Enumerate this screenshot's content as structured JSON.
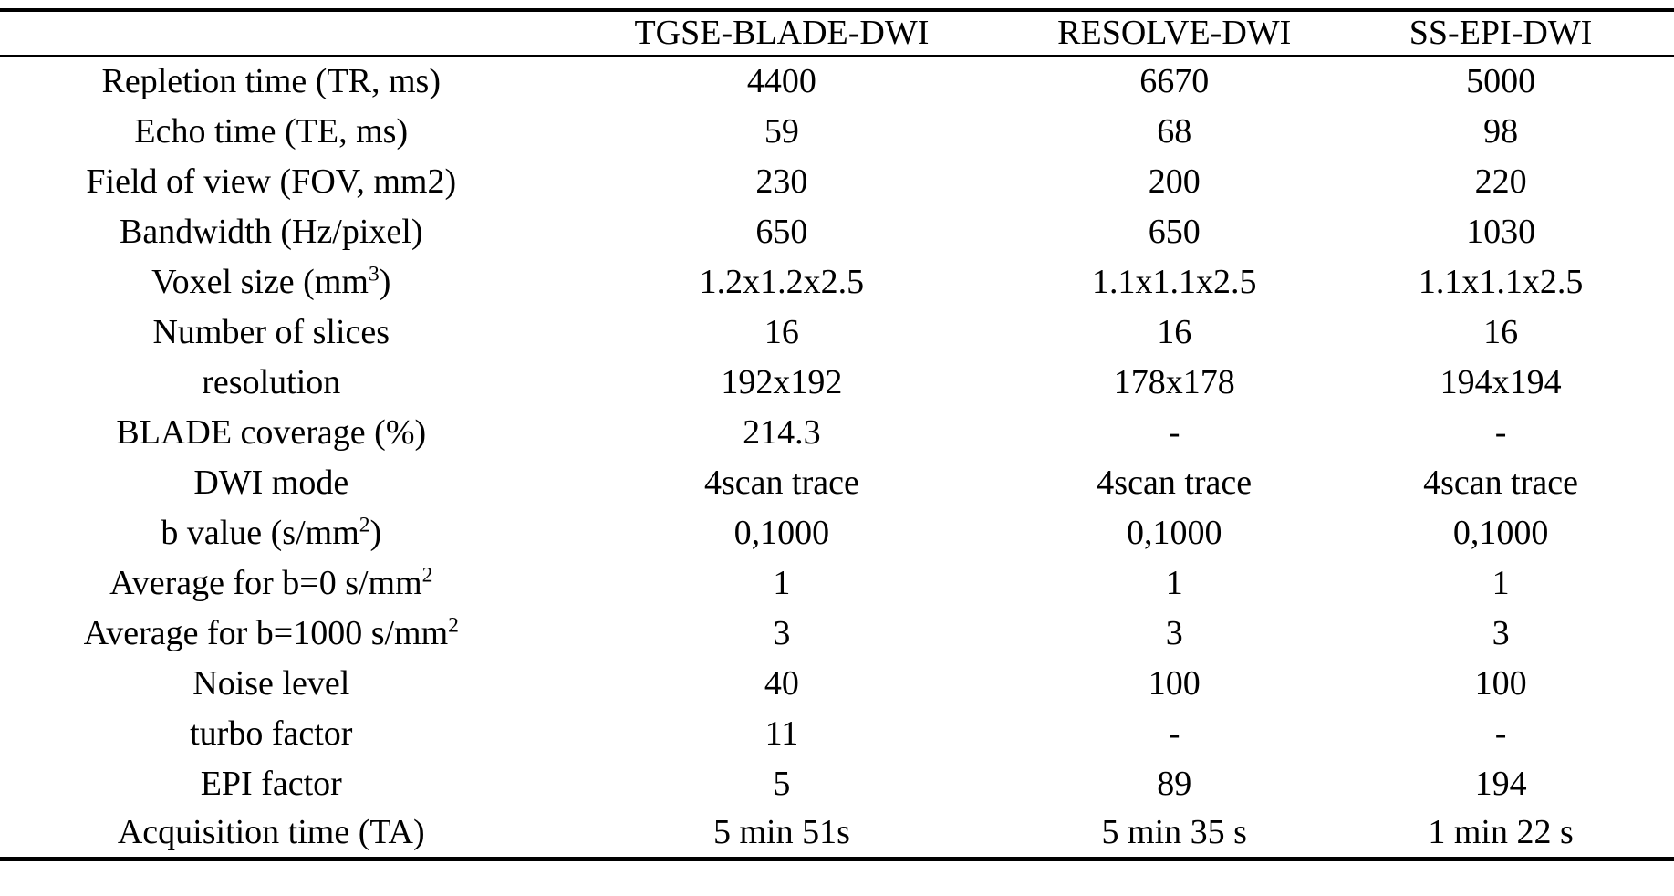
{
  "page": {
    "background_color": "#ffffff",
    "text_color": "#000000",
    "rule_color": "#000000"
  },
  "table": {
    "columns": [
      "",
      "TGSE-BLADE-DWI",
      "RESOLVE-DWI",
      "SS-EPI-DWI"
    ],
    "rows": [
      {
        "label": "Repletion time (TR, ms)",
        "values": [
          "4400",
          "6670",
          "5000"
        ]
      },
      {
        "label": "Echo time (TE, ms)",
        "values": [
          "59",
          "68",
          "98"
        ]
      },
      {
        "label": "Field of view (FOV, mm2)",
        "values": [
          "230",
          "200",
          "220"
        ]
      },
      {
        "label": "Bandwidth (Hz/pixel)",
        "values": [
          "650",
          "650",
          "1030"
        ]
      },
      {
        "label": "Voxel size (mm^{3})",
        "values": [
          "1.2x1.2x2.5",
          "1.1x1.1x2.5",
          "1.1x1.1x2.5"
        ]
      },
      {
        "label": "Number of slices",
        "values": [
          "16",
          "16",
          "16"
        ]
      },
      {
        "label": "resolution",
        "values": [
          "192x192",
          "178x178",
          "194x194"
        ]
      },
      {
        "label": "BLADE coverage (%)",
        "values": [
          "214.3",
          "-",
          "-"
        ]
      },
      {
        "label": "DWI mode",
        "values": [
          "4scan trace",
          "4scan trace",
          "4scan trace"
        ]
      },
      {
        "label": "b value (s/mm^{2})",
        "values": [
          "0,1000",
          "0,1000",
          "0,1000"
        ]
      },
      {
        "label": "Average for b=0 s/mm^{2}",
        "values": [
          "1",
          "1",
          "1"
        ]
      },
      {
        "label": "Average for b=1000 s/mm^{2}",
        "values": [
          "3",
          "3",
          "3"
        ]
      },
      {
        "label": "Noise level",
        "values": [
          "40",
          "100",
          "100"
        ]
      },
      {
        "label": "turbo factor",
        "values": [
          "11",
          "-",
          "-"
        ]
      },
      {
        "label": "EPI factor",
        "values": [
          "5",
          "89",
          "194"
        ]
      },
      {
        "label": "Acquisition time (TA)",
        "values": [
          "5 min 51s",
          "5 min 35 s",
          "1 min 22 s"
        ]
      }
    ]
  }
}
